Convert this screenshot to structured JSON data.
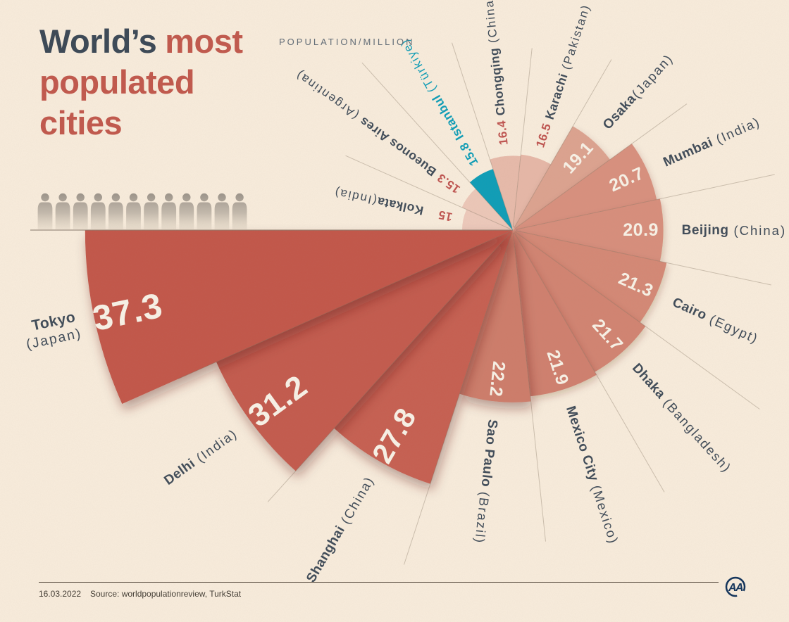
{
  "title": {
    "word_dark": "World’s",
    "word_red": "most",
    "line2": "populated",
    "line3": "cities"
  },
  "axis_label": "POPULATION/MILLION",
  "footer": {
    "date": "16.03.2022",
    "source": "Source: worldpopulationreview, TurkStat",
    "logo_text": "AA"
  },
  "decor": {
    "person_icons": 12
  },
  "chart_data": {
    "type": "polar-bar",
    "title": "World's most populated cities",
    "unit_label": "POPULATION/MILLION",
    "unit": "million people",
    "start_angle": "west",
    "direction": "counterclockwise",
    "wedge_angle_deg": 24,
    "palette": {
      "background": "#f8ecdc",
      "value_inside": "#f8f2e7",
      "value_outside": "#bf5450",
      "label": "#3f4b58",
      "highlight": "#0d9db7",
      "divider": "#7a6a58",
      "baseline": "#8b7e70",
      "title_dark": "#3e4a57",
      "title_red": "#c05a4e"
    },
    "cities": [
      {
        "name": "Tokyo",
        "country": "(Japan)",
        "value": 37.3,
        "fill": "#c25649",
        "stacked": true
      },
      {
        "name": "Delhi",
        "country": "(India)",
        "value": 31.2,
        "fill": "#c35a4d"
      },
      {
        "name": "Shanghai",
        "country": "(China)",
        "value": 27.8,
        "fill": "#c65e51"
      },
      {
        "name": "Sao Paulo",
        "country": "(Brazil)",
        "value": 22.2,
        "fill": "#cd7c6b"
      },
      {
        "name": "Mexico City",
        "country": "(Mexico)",
        "value": 21.9,
        "fill": "#cf7f6e"
      },
      {
        "name": "Dhaka",
        "country": "(Bangladesh)",
        "value": 21.7,
        "fill": "#d18371"
      },
      {
        "name": "Cairo",
        "country": "(Egypt)",
        "value": 21.3,
        "fill": "#d48875"
      },
      {
        "name": "Beijing",
        "country": "(China)",
        "value": 20.9,
        "fill": "#d78e7c"
      },
      {
        "name": "Mumbai",
        "country": "(India)",
        "value": 20.7,
        "fill": "#d8907e"
      },
      {
        "name": "Osaka",
        "country": "(Japan)",
        "value": 19.1,
        "fill": "#dca28f",
        "tight": true
      },
      {
        "name": "Karachi",
        "country": "(Pakistan)",
        "value": 16.5,
        "fill": "#e6b7a7"
      },
      {
        "name": "Chongqing",
        "country": "(China)",
        "value": 16.4,
        "fill": "#e7baaa"
      },
      {
        "name": "Istanbul",
        "country": "(Türkiye)",
        "value": 15.8,
        "fill": "#0d9db7",
        "highlight": true
      },
      {
        "name": "Bueonos Aires",
        "country": "(Argentina)",
        "value": 15.3,
        "fill": "#ecc7b8"
      },
      {
        "name": "Kolkata",
        "country": "(India)",
        "value": 15,
        "fill": "#edc9bb",
        "tight": true
      }
    ]
  }
}
